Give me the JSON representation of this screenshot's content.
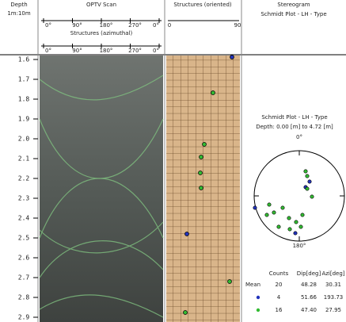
{
  "header": {
    "depth": {
      "title": "Depth",
      "unit": "1m:10m"
    },
    "optv": {
      "title": "OPTV Scan",
      "ticks": [
        "0°",
        "90°",
        "180°",
        "270°",
        "0°"
      ],
      "subtitle": "Structures (azimuthal)",
      "subticks": [
        "0°",
        "90°",
        "180°",
        "270°",
        "0°"
      ]
    },
    "structures": {
      "title": "Structures (oriented)",
      "ticks": [
        "0",
        "90"
      ]
    },
    "stereogram": {
      "title": "Stereogram",
      "subtitle": "Schmidt Plot - LH - Type"
    }
  },
  "depths": [
    "1.6",
    "1.7",
    "1.8",
    "1.9",
    "2.0",
    "2.1",
    "2.2",
    "2.3",
    "2.4",
    "2.5",
    "2.6",
    "2.7",
    "2.8",
    "2.9"
  ],
  "stereogram": {
    "title": "Schmidt Plot - LH - Type",
    "range": "Depth: 0.00 [m] to 4.72 [m]",
    "north": "0°",
    "south": "180°",
    "table": {
      "columns": [
        "Counts",
        "Dip[deg]",
        "Azi[deg]"
      ],
      "rows": [
        {
          "label": "Mean",
          "cells": [
            "20",
            "48.28",
            "30.31"
          ]
        },
        {
          "cells": [
            "4",
            "51.66",
            "193.73"
          ]
        },
        {
          "cells": [
            "16",
            "47.40",
            "27.95"
          ]
        }
      ]
    }
  }
}
